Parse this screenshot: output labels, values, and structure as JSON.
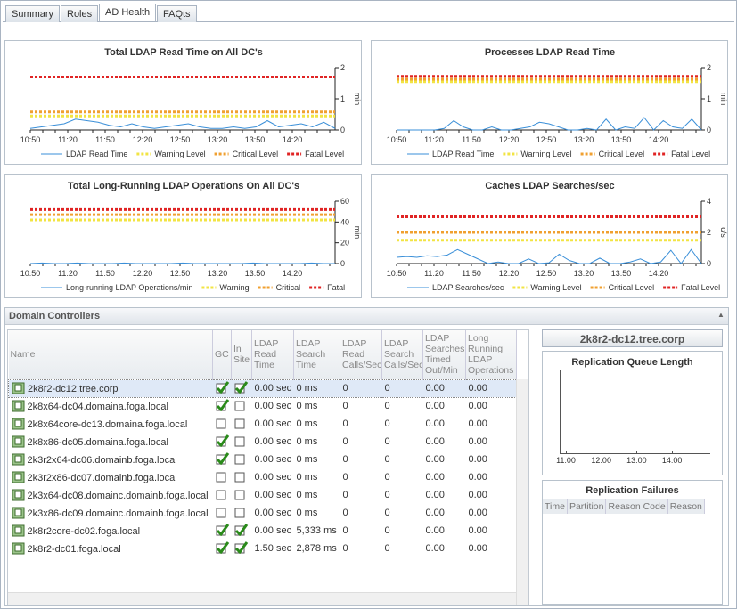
{
  "tabs": [
    "Summary",
    "Roles",
    "AD Health",
    "FAQts"
  ],
  "charts": [
    {
      "title": "Total LDAP Read Time on All DC's",
      "y_label": "min",
      "ylim": [
        0,
        2
      ],
      "yticks": [
        0,
        1,
        2
      ],
      "xticks": [
        "10:50",
        "11:20",
        "11:50",
        "12:20",
        "12:50",
        "13:20",
        "13:50",
        "14:20"
      ],
      "series": [
        {
          "name": "LDAP Read Time",
          "color": "#3a8fd8",
          "values": [
            0.05,
            0.1,
            0.15,
            0.2,
            0.35,
            0.3,
            0.25,
            0.15,
            0.1,
            0.2,
            0.1,
            0.05,
            0.1,
            0.15,
            0.2,
            0.1,
            0.05,
            0.05,
            0.1,
            0.05,
            0.1,
            0.3,
            0.1,
            0.15,
            0.2,
            0.1,
            0.25,
            0.05
          ]
        },
        {
          "name": "Warning Level",
          "color": "#f2e443",
          "level": 0.45
        },
        {
          "name": "Critical Level",
          "color": "#f0a030",
          "level": 0.58
        },
        {
          "name": "Fatal Level",
          "color": "#e02424",
          "level": 1.7
        }
      ]
    },
    {
      "title": "Processes LDAP Read Time",
      "y_label": "min",
      "ylim": [
        0,
        2
      ],
      "yticks": [
        0,
        1,
        2
      ],
      "xticks": [
        "10:50",
        "11:20",
        "11:50",
        "12:20",
        "12:50",
        "13:20",
        "13:50",
        "14:20"
      ],
      "series": [
        {
          "name": "LDAP Read Time",
          "color": "#3a8fd8",
          "values": [
            0,
            0,
            0,
            0,
            0,
            0.05,
            0.3,
            0.1,
            0,
            0,
            0.1,
            0,
            0,
            0.05,
            0.1,
            0.25,
            0.2,
            0.1,
            0,
            0,
            0.05,
            0,
            0.35,
            0,
            0.1,
            0.05,
            0.4,
            0,
            0.3,
            0.1,
            0.05,
            0.35,
            0
          ]
        },
        {
          "name": "Warning Level",
          "color": "#f2e443",
          "level": 1.55
        },
        {
          "name": "Critical Level",
          "color": "#f0a030",
          "level": 1.63
        },
        {
          "name": "Fatal Level",
          "color": "#e02424",
          "level": 1.72
        }
      ]
    },
    {
      "title": "Total Long-Running LDAP Operations On All DC's",
      "y_label": "min",
      "ylim": [
        0,
        60
      ],
      "yticks": [
        0,
        20,
        40,
        60
      ],
      "xticks": [
        "10:50",
        "11:20",
        "11:50",
        "12:20",
        "12:50",
        "13:20",
        "13:50",
        "14:20"
      ],
      "series": [
        {
          "name": "Long-running LDAP Operations/min",
          "color": "#3a8fd8",
          "values": [
            0,
            0.5,
            0,
            0,
            0.5,
            0,
            0,
            0,
            0.5,
            0,
            0,
            0,
            0,
            0.5,
            0,
            0,
            0,
            0,
            0,
            0.5,
            0,
            0,
            0,
            0,
            0.5,
            0,
            0
          ]
        },
        {
          "name": "Warning",
          "color": "#f2e443",
          "level": 42
        },
        {
          "name": "Critical",
          "color": "#f0a030",
          "level": 47
        },
        {
          "name": "Fatal",
          "color": "#e02424",
          "level": 52
        }
      ]
    },
    {
      "title": "Caches LDAP Searches/sec",
      "y_label": "c/s",
      "ylim": [
        0,
        4
      ],
      "yticks": [
        0,
        2,
        4
      ],
      "xticks": [
        "10:50",
        "11:20",
        "11:50",
        "12:20",
        "12:50",
        "13:20",
        "13:50",
        "14:20"
      ],
      "series": [
        {
          "name": "LDAP Searches/sec",
          "color": "#3a8fd8",
          "values": [
            0.4,
            0.45,
            0.4,
            0.5,
            0.45,
            0.55,
            0.9,
            0.6,
            0.3,
            0,
            0.1,
            0,
            0,
            0.3,
            0,
            0.05,
            0.6,
            0.2,
            0,
            0,
            0.35,
            0,
            0,
            0.1,
            0.3,
            0,
            0.1,
            0.85,
            0,
            0.9,
            0
          ]
        },
        {
          "name": "Warning Level",
          "color": "#f2e443",
          "level": 1.5
        },
        {
          "name": "Critical Level",
          "color": "#f0a030",
          "level": 2
        },
        {
          "name": "Fatal Level",
          "color": "#e02424",
          "level": 3
        }
      ]
    }
  ],
  "domain_controllers": {
    "title": "Domain Controllers",
    "columns": [
      "Name",
      "GC",
      "In Site",
      "LDAP Read Time",
      "LDAP Search Time",
      "LDAP Read Calls/Sec",
      "LDAP Search Calls/Sec",
      "LDAP Searches Timed Out/Min",
      "Long Running LDAP Operations"
    ],
    "rows": [
      {
        "name": "2k8r2-dc12.tree.corp",
        "gc": true,
        "in_site": true,
        "cells": [
          "0.00 sec",
          "0 ms",
          "0",
          "0",
          "0.00",
          "0.00"
        ]
      },
      {
        "name": "2k8x64-dc04.domaina.foga.local",
        "gc": true,
        "in_site": false,
        "cells": [
          "0.00 sec",
          "0 ms",
          "0",
          "0",
          "0.00",
          "0.00"
        ]
      },
      {
        "name": "2k8x64core-dc13.domaina.foga.local",
        "gc": false,
        "in_site": false,
        "cells": [
          "0.00 sec",
          "0 ms",
          "0",
          "0",
          "0.00",
          "0.00"
        ]
      },
      {
        "name": "2k8x86-dc05.domaina.foga.local",
        "gc": true,
        "in_site": false,
        "cells": [
          "0.00 sec",
          "0 ms",
          "0",
          "0",
          "0.00",
          "0.00"
        ]
      },
      {
        "name": "2k3r2x64-dc06.domainb.foga.local",
        "gc": true,
        "in_site": false,
        "cells": [
          "0.00 sec",
          "0 ms",
          "0",
          "0",
          "0.00",
          "0.00"
        ]
      },
      {
        "name": "2k3r2x86-dc07.domainb.foga.local",
        "gc": false,
        "in_site": false,
        "cells": [
          "0.00 sec",
          "0 ms",
          "0",
          "0",
          "0.00",
          "0.00"
        ]
      },
      {
        "name": "2k3x64-dc08.domainc.domainb.foga.local",
        "gc": false,
        "in_site": false,
        "cells": [
          "0.00 sec",
          "0 ms",
          "0",
          "0",
          "0.00",
          "0.00"
        ]
      },
      {
        "name": "2k3x86-dc09.domainc.domainb.foga.local",
        "gc": false,
        "in_site": false,
        "cells": [
          "0.00 sec",
          "0 ms",
          "0",
          "0",
          "0.00",
          "0.00"
        ]
      },
      {
        "name": "2k8r2core-dc02.foga.local",
        "gc": true,
        "in_site": true,
        "cells": [
          "0.00 sec",
          "5,333 ms",
          "0",
          "0",
          "0.00",
          "0.00"
        ]
      },
      {
        "name": "2k8r2-dc01.foga.local",
        "gc": true,
        "in_site": true,
        "cells": [
          "1.50 sec",
          "2,878 ms",
          "0",
          "0",
          "0.00",
          "0.00"
        ]
      }
    ]
  },
  "selected_server": "2k8r2-dc12.tree.corp",
  "replication_queue": {
    "title": "Replication Queue Length",
    "xticks": [
      "11:00",
      "12:00",
      "13:00",
      "14:00"
    ]
  },
  "replication_failures": {
    "title": "Replication Failures",
    "columns": [
      "Time",
      "Partition",
      "Reason Code",
      "Reason"
    ]
  }
}
